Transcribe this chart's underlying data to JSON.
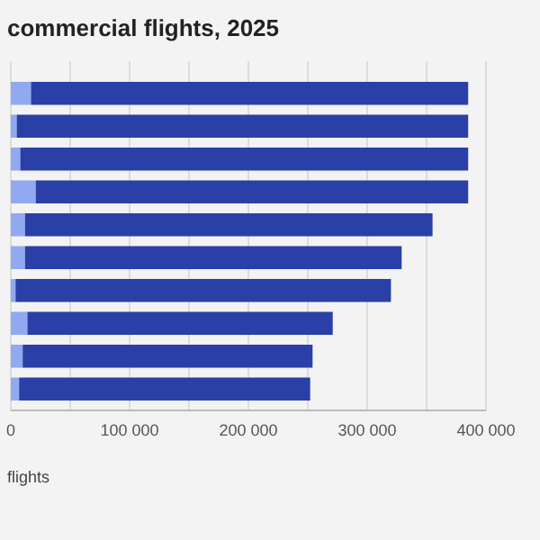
{
  "chart_data": {
    "type": "bar",
    "orientation": "horizontal",
    "stacked": true,
    "title": "commercial flights, 2025",
    "xlabel": "flights",
    "categories": [
      null,
      null,
      null,
      null,
      null,
      null,
      null,
      null,
      null,
      null
    ],
    "series": [
      {
        "color": "#91a9f0",
        "values": [
          17000,
          5000,
          8000,
          21000,
          12000,
          12000,
          4000,
          14000,
          10000,
          7000
        ]
      },
      {
        "color": "#2a40a6",
        "values": [
          368000,
          380000,
          377000,
          364000,
          343000,
          317000,
          316000,
          257000,
          244000,
          245000
        ]
      }
    ],
    "xlim": [
      0,
      400000
    ],
    "xticks": [
      0,
      {
        "value": 50000,
        "label": null
      },
      {
        "value": 100000,
        "label": "100 000"
      },
      {
        "value": 150000,
        "label": null
      },
      {
        "value": 200000,
        "label": "200 000"
      },
      {
        "value": 250000,
        "label": null
      },
      {
        "value": 300000,
        "label": "300 000"
      },
      {
        "value": 350000,
        "label": null
      },
      {
        "value": 400000,
        "label": "400 000"
      }
    ],
    "grid": "x"
  }
}
